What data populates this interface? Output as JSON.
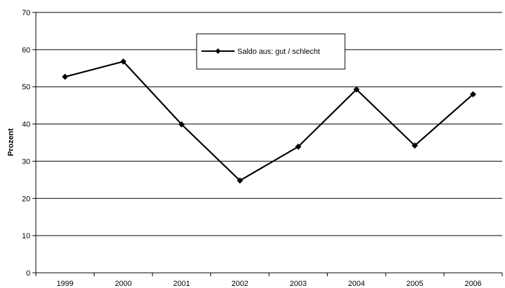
{
  "chart_data": {
    "type": "line",
    "title": "",
    "xlabel": "",
    "ylabel": "Prozent",
    "ylim": [
      0,
      70
    ],
    "yticks": [
      0,
      10,
      20,
      30,
      40,
      50,
      60,
      70
    ],
    "categories": [
      "1999",
      "2000",
      "2001",
      "2002",
      "2003",
      "2004",
      "2005",
      "2006"
    ],
    "series": [
      {
        "name": "Saldo aus: gut / schlecht",
        "values": [
          52.7,
          56.8,
          39.9,
          24.8,
          33.9,
          49.3,
          34.2,
          48.0
        ],
        "color": "#000000",
        "marker": "diamond"
      }
    ],
    "grid": "horizontal",
    "legend": "top-center"
  }
}
